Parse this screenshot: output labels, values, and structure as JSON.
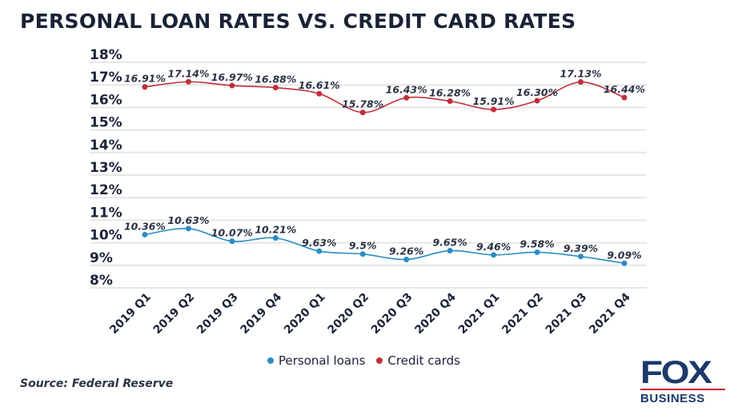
{
  "title": "PERSONAL LOAN RATES VS. CREDIT CARD RATES",
  "source": "Source: Federal Reserve",
  "logo": {
    "text": "FOX",
    "subtext": "BUSINESS"
  },
  "chart_data": {
    "type": "line",
    "title": "PERSONAL LOAN RATES VS. CREDIT CARD RATES",
    "categories": [
      "2019 Q1",
      "2019 Q2",
      "2019 Q3",
      "2019 Q4",
      "2020 Q1",
      "2020 Q2",
      "2020 Q3",
      "2020 Q4",
      "2021 Q1",
      "2021 Q2",
      "2021 Q3",
      "2021 Q4"
    ],
    "ylim": [
      8,
      18
    ],
    "yticks": [
      "18%",
      "17%",
      "16%",
      "15%",
      "14%",
      "13%",
      "12%",
      "11%",
      "10%",
      "9%",
      "8%"
    ],
    "grid": true,
    "legend_position": "bottom",
    "series": [
      {
        "name": "Personal loans",
        "color": "#2a8cc4",
        "values": [
          10.36,
          10.63,
          10.07,
          10.21,
          9.63,
          9.5,
          9.26,
          9.65,
          9.46,
          9.58,
          9.39,
          9.09
        ],
        "labels": [
          "10.36%",
          "10.63%",
          "10.07%",
          "10.21%",
          "9.63%",
          "9.5%",
          "9.26%",
          "9.65%",
          "9.46%",
          "9.58%",
          "9.39%",
          "9.09%"
        ]
      },
      {
        "name": "Credit cards",
        "color": "#c0303a",
        "values": [
          16.91,
          17.14,
          16.97,
          16.88,
          16.61,
          15.78,
          16.43,
          16.28,
          15.91,
          16.3,
          17.13,
          16.44
        ],
        "labels": [
          "16.91%",
          "17.14%",
          "16.97%",
          "16.88%",
          "16.61%",
          "15.78%",
          "16.43%",
          "16.28%",
          "15.91%",
          "16.30%",
          "17.13%",
          "16.44%"
        ]
      }
    ]
  }
}
